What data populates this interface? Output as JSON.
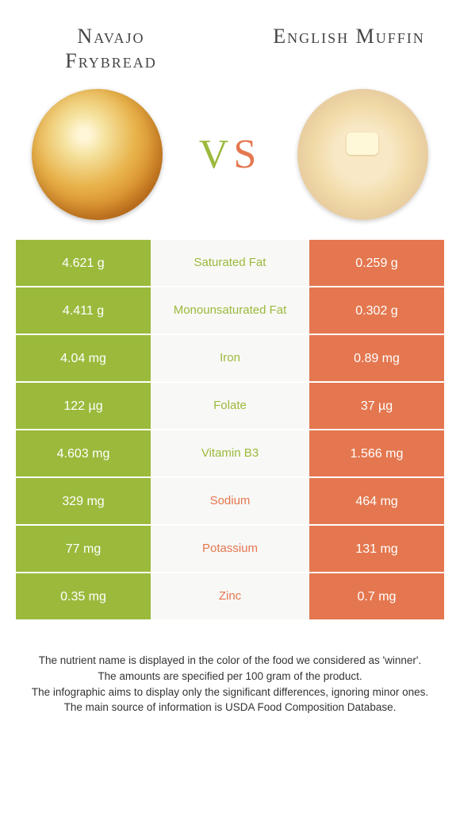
{
  "colors": {
    "left": "#9bba3c",
    "right": "#e4774f",
    "left_text": "#ffffff",
    "right_text": "#ffffff",
    "mid_bg": "#f8f8f6"
  },
  "foods": {
    "left": {
      "name": "Navajo Frybread"
    },
    "right": {
      "name": "English Muffin"
    }
  },
  "vs": "VS",
  "rows": [
    {
      "left": "4.621 g",
      "label": "Saturated Fat",
      "right": "0.259 g",
      "winner": "left"
    },
    {
      "left": "4.411 g",
      "label": "Monounsaturated Fat",
      "right": "0.302 g",
      "winner": "left"
    },
    {
      "left": "4.04 mg",
      "label": "Iron",
      "right": "0.89 mg",
      "winner": "left"
    },
    {
      "left": "122 µg",
      "label": "Folate",
      "right": "37 µg",
      "winner": "left"
    },
    {
      "left": "4.603 mg",
      "label": "Vitamin B3",
      "right": "1.566 mg",
      "winner": "left"
    },
    {
      "left": "329 mg",
      "label": "Sodium",
      "right": "464 mg",
      "winner": "right"
    },
    {
      "left": "77 mg",
      "label": "Potassium",
      "right": "131 mg",
      "winner": "right"
    },
    {
      "left": "0.35 mg",
      "label": "Zinc",
      "right": "0.7 mg",
      "winner": "right"
    }
  ],
  "footer": [
    "The nutrient name is displayed in the color of the food we considered as 'winner'.",
    "The amounts are specified per 100 gram of the product.",
    "The infographic aims to display only the significant differences, ignoring minor ones.",
    "The main source of information is USDA Food Composition Database."
  ]
}
